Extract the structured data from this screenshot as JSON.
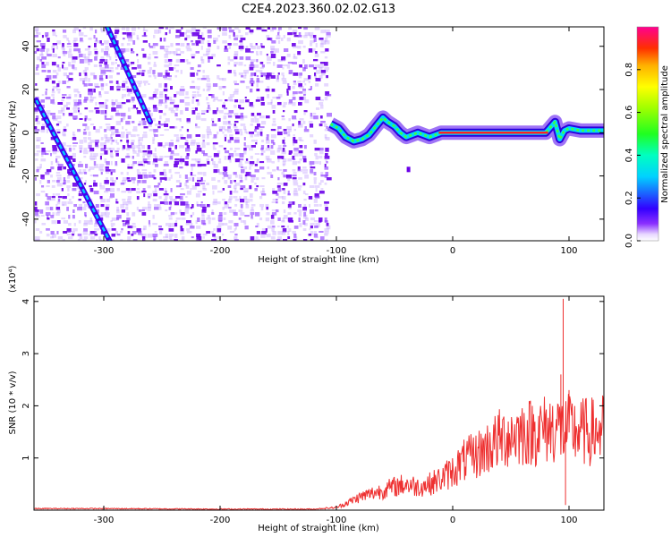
{
  "title": "C2E4.2023.360.02.02.G13",
  "colors": {
    "spectrogram_low": "#6a00e8",
    "ridge_line": "#ff2020",
    "snr_line": "#ee3030",
    "axis": "#000000"
  },
  "chart_data": [
    {
      "type": "heatmap",
      "title": "C2E4.2023.360.02.02.G13",
      "xlabel": "Height of straight line (km)",
      "ylabel": "Frequency (Hz)",
      "xlim": [
        -360,
        130
      ],
      "ylim": [
        -50,
        49
      ],
      "xticks": [
        -300,
        -200,
        -100,
        0,
        100
      ],
      "yticks": [
        -40,
        -20,
        0,
        20,
        40
      ],
      "colorbar": {
        "label": "Normalized spectral amplitude",
        "range": [
          0,
          1
        ],
        "ticks": [
          "0.0",
          "0.2",
          "0.4",
          "0.6",
          "0.8"
        ],
        "colormap": "rainbow (violet to red)"
      },
      "features": {
        "noise_region_x": [
          -360,
          -107
        ],
        "signal_start_x": -107,
        "ridge_frequency_hz": 0,
        "diagonal_tracks": [
          {
            "x_start": -358,
            "y_start": 15,
            "x_end": -295,
            "y_end": -50
          },
          {
            "x_start": -297,
            "y_start": 49,
            "x_end": -260,
            "y_end": 5
          }
        ],
        "ridge_points": [
          [
            -105,
            4
          ],
          [
            -98,
            2
          ],
          [
            -92,
            -2
          ],
          [
            -85,
            -4
          ],
          [
            -78,
            -3
          ],
          [
            -72,
            -1
          ],
          [
            -66,
            3
          ],
          [
            -60,
            7
          ],
          [
            -56,
            5
          ],
          [
            -50,
            3
          ],
          [
            -45,
            0
          ],
          [
            -40,
            -2
          ],
          [
            -35,
            -1
          ],
          [
            -30,
            0
          ],
          [
            -25,
            -1
          ],
          [
            -20,
            -2
          ],
          [
            -15,
            -1
          ],
          [
            -10,
            0
          ],
          [
            0,
            0
          ],
          [
            20,
            0
          ],
          [
            40,
            0
          ],
          [
            60,
            0
          ],
          [
            80,
            0
          ],
          [
            88,
            5
          ],
          [
            92,
            -3
          ],
          [
            96,
            1
          ],
          [
            100,
            2
          ],
          [
            110,
            1
          ],
          [
            120,
            1
          ],
          [
            130,
            1
          ]
        ]
      }
    },
    {
      "type": "line",
      "xlabel": "Height of straight line (km)",
      "ylabel": "SNR (10 * v/v)",
      "y_multiplier": "(x10⁴)",
      "xlim": [
        -360,
        130
      ],
      "ylim": [
        0,
        4.1
      ],
      "xticks": [
        -300,
        -200,
        -100,
        0,
        100
      ],
      "yticks": [
        1,
        2,
        3,
        4
      ],
      "series": [
        {
          "x": [
            -360,
            -300,
            -200,
            -120,
            -100,
            -90,
            -80,
            -70,
            -60,
            -50,
            -40,
            -30,
            -20,
            -10,
            0,
            10,
            20,
            30,
            40,
            50,
            60,
            70,
            80,
            90,
            95,
            100,
            110,
            120,
            130
          ],
          "y": [
            0.03,
            0.03,
            0.02,
            0.02,
            0.05,
            0.15,
            0.25,
            0.32,
            0.38,
            0.45,
            0.5,
            0.45,
            0.5,
            0.6,
            0.75,
            0.95,
            1.05,
            1.2,
            1.35,
            1.45,
            1.5,
            1.5,
            1.55,
            1.6,
            1.5,
            1.55,
            1.5,
            1.5,
            1.55
          ],
          "peaks": [
            [
              93,
              2.6
            ],
            [
              95,
              4.05
            ],
            [
              97,
              0.1
            ],
            [
              100,
              2.3
            ],
            [
              115,
              1.9
            ]
          ]
        }
      ]
    }
  ]
}
